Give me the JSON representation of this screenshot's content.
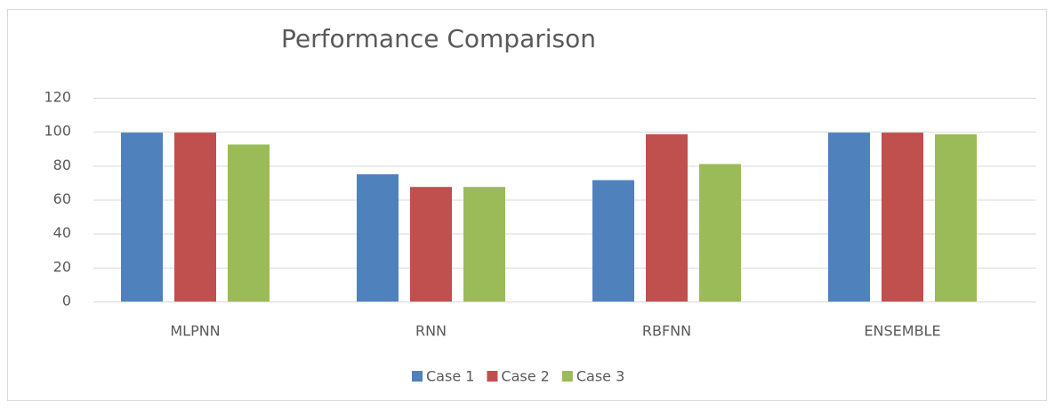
{
  "chart_data": {
    "type": "bar",
    "title": "Performance Comparison",
    "categories": [
      "MLPNN",
      "RNN",
      "RBFNN",
      "ENSEMBLE"
    ],
    "series": [
      {
        "name": "Case 1",
        "color": "#4f81bd",
        "values": [
          99.5,
          75,
          71.5,
          99.5
        ]
      },
      {
        "name": "Case 2",
        "color": "#c0504d",
        "values": [
          99.5,
          67.5,
          98.5,
          99.5
        ]
      },
      {
        "name": "Case 3",
        "color": "#9bbb59",
        "values": [
          92.5,
          67.5,
          81,
          98.5
        ]
      }
    ],
    "ylim": [
      0,
      120
    ],
    "yticks": [
      0,
      20,
      40,
      60,
      80,
      100,
      120
    ],
    "grid": true,
    "legend": "bottom"
  }
}
